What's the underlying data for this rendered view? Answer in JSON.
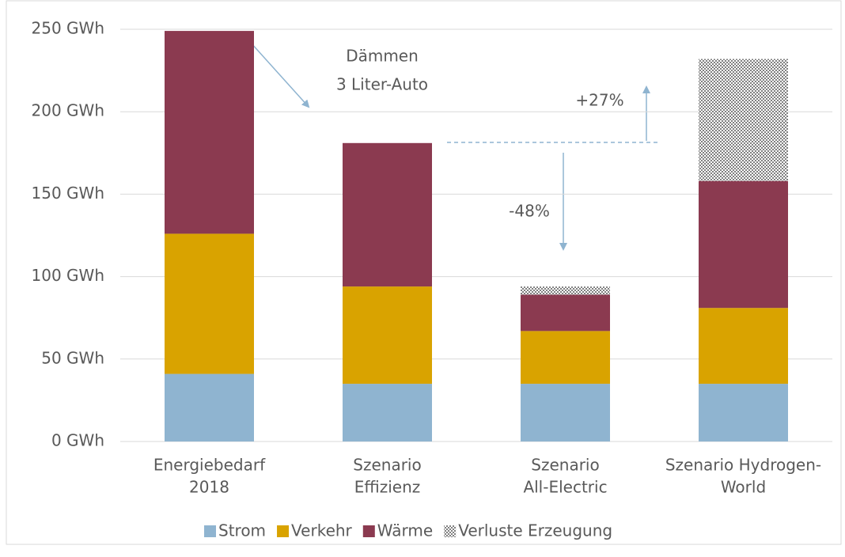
{
  "chart_data": {
    "type": "stacked_bar",
    "categories": [
      [
        "Energiebedarf",
        "2018"
      ],
      [
        "Szenario",
        "Effizienz"
      ],
      [
        "Szenario",
        "All-Electric"
      ],
      [
        "Szenario Hydrogen-",
        "World"
      ]
    ],
    "series": [
      {
        "name": "Strom",
        "color": "#8fb4d0",
        "values": [
          41,
          35,
          35,
          35
        ]
      },
      {
        "name": "Verkehr",
        "color": "#d9a300",
        "values": [
          85,
          59,
          32,
          46
        ]
      },
      {
        "name": "Wärme",
        "color": "#8b3a50",
        "values": [
          123,
          87,
          22,
          77
        ]
      },
      {
        "name": "Verluste Erzeugung",
        "color": "#808080",
        "pattern": "checker",
        "values": [
          null,
          null,
          5,
          74
        ]
      }
    ],
    "ylim": [
      0,
      250
    ],
    "yticks": [
      {
        "value": 0,
        "label": "0 GWh"
      },
      {
        "value": 50,
        "label": "50 GWh"
      },
      {
        "value": 100,
        "label": "100 GWh"
      },
      {
        "value": 150,
        "label": "150 GWh"
      },
      {
        "value": 200,
        "label": "200 GWh"
      },
      {
        "value": 250,
        "label": "250 GWh"
      }
    ],
    "grid": true,
    "legend": "bottom",
    "annotations": [
      "Dämmen",
      "3 Liter-Auto",
      "+27%",
      "-48%"
    ]
  }
}
